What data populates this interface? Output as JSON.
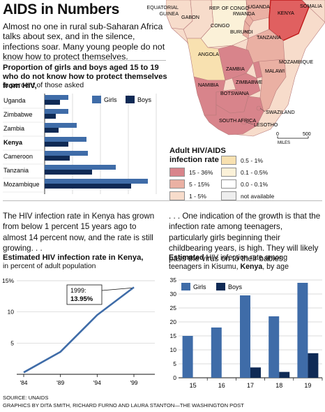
{
  "title": "AIDS in Numbers",
  "intro": "Almost no one in rural sub-Saharan Africa talks about sex, and in the silence, infections soar. Many young people do not know how to protect themselves.",
  "chart1": {
    "headline": "Proportion of girls and boys aged 15 to 19 who do not know how to protect themselves from HIV,",
    "note": "in percent of those asked"
  },
  "body": {
    "left": "The HIV infection rate in Kenya has grown from below 1 percent 15 years ago to almost 14 percent now, and the rate is still growing. . .",
    "right": ". . . One indication of the growth is that the infection rate among teenagers, particularly girls beginning their childbearing years, is high. They will likely pass the virus on to their babies."
  },
  "chart2": {
    "headline": "Estimated HIV infection rate in Kenya,",
    "note": "in percent of adult population",
    "callout_year": "1999:",
    "callout_value": "13.95%"
  },
  "chart3": {
    "headline_bold": "Estimated",
    "headline_rest": " HIV infection rate among",
    "line2_pre": "teenagers in Kisumu, ",
    "line2_bold": "Kenya",
    "line2_post": ", by age"
  },
  "map": {
    "countries": [
      "EQUATORIAL GUINEA",
      "GABON",
      "REP. OF CONGO",
      "CONGO",
      "RWANDA",
      "UGANDA",
      "KENYA",
      "SOMALIA",
      "BURUNDI",
      "TANZANIA",
      "ANGOLA",
      "ZAMBIA",
      "MALAWI",
      "MOZAMBIQUE",
      "NAMIBIA",
      "ZIMBABWE",
      "BOTSWANA",
      "SWAZILAND",
      "SOUTH AFRICA",
      "LESOTHO"
    ],
    "scale_labels": [
      "0",
      "500"
    ],
    "scale_unit": "MILES",
    "legend_title": "Adult HIV/AIDS infection rate",
    "legend": [
      {
        "label": "15 - 36%",
        "color": "#d8848b"
      },
      {
        "label": "5 - 15%",
        "color": "#eab0a3"
      },
      {
        "label": "1 - 5%",
        "color": "#f7dccb"
      },
      {
        "label": "0.5 - 1%",
        "color": "#f8e1b0"
      },
      {
        "label": "0.1 - 0.5%",
        "color": "#fbf1d8"
      },
      {
        "label": "0.0 - 0.1%",
        "color": "#ffffff"
      },
      {
        "label": "not available",
        "color": "#eeeeee"
      }
    ]
  },
  "footer": {
    "source": "SOURCE: UNAIDS",
    "credits": "GRAPHICS BY DITA SMITH, RICHARD FURNO AND LAURA STANTON—THE WASHINGTON POST"
  },
  "colors": {
    "girls": "#3f6ca8",
    "boys": "#0f2a55",
    "line": "#3f6ca8"
  },
  "chart_data": [
    {
      "type": "bar",
      "orientation": "horizontal",
      "categories": [
        "Uganda",
        "Zimbabwe",
        "Zambia",
        "Kenya",
        "Cameroon",
        "Tanzania",
        "Mozambique"
      ],
      "highlight_category": "Kenya",
      "series": [
        {
          "name": "Girls",
          "values": [
            17,
            17,
            23,
            30,
            31,
            51,
            74
          ]
        },
        {
          "name": "Boys",
          "values": [
            11,
            8,
            10,
            17,
            18,
            34,
            62
          ]
        }
      ],
      "xlim": [
        0,
        80
      ],
      "xticks": [
        0,
        20,
        40,
        60,
        80
      ],
      "legend": "top-right",
      "grid": true
    },
    {
      "type": "line",
      "x": [
        "'84",
        "'89",
        "'94",
        "'99"
      ],
      "x_numeric": [
        1984,
        1989,
        1994,
        1999
      ],
      "values": [
        0.3,
        3.6,
        9.5,
        13.95
      ],
      "ylim": [
        0,
        15
      ],
      "yticks": [
        "5",
        "10",
        "15%"
      ],
      "annotation": {
        "x": 1999,
        "text": "1999: 13.95%"
      },
      "grid": true
    },
    {
      "type": "bar",
      "categories": [
        "15",
        "16",
        "17",
        "18",
        "19"
      ],
      "series": [
        {
          "name": "Girls",
          "values": [
            15,
            18,
            29.5,
            22,
            34
          ]
        },
        {
          "name": "Boys",
          "values": [
            0,
            0,
            3.7,
            2.1,
            8.8
          ]
        }
      ],
      "ylim": [
        0,
        35
      ],
      "yticks": [
        0,
        5,
        10,
        15,
        20,
        25,
        30,
        35
      ],
      "legend": "top-left",
      "grid": true
    }
  ]
}
